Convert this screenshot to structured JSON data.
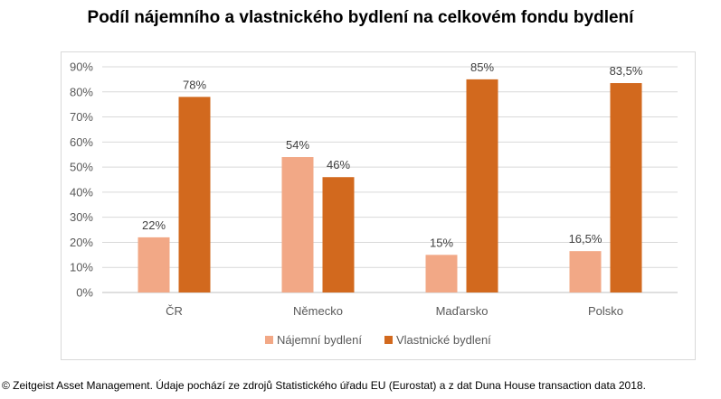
{
  "title": "Podíl nájemního a vlastnického bydlení na celkovém fondu bydlení",
  "credit": "© Zeitgeist Asset Management. Údaje pochází ze zdrojů Statistického úřadu EU (Eurostat) a z dat Duna House transaction data 2018.",
  "colors": {
    "series1": "#f2a886",
    "series2": "#d2691e",
    "grid": "#d9d9d9",
    "axis": "#bfbfbf",
    "text": "#595959"
  },
  "chart_data": {
    "type": "bar",
    "title": "Podíl nájemního a vlastnického bydlení na celkovém fondu bydlení",
    "categories": [
      "ČR",
      "Německo",
      "Maďarsko",
      "Polsko"
    ],
    "series": [
      {
        "name": "Nájemní bydlení",
        "values": [
          22,
          54,
          15,
          16.5
        ],
        "labels": [
          "22%",
          "54%",
          "15%",
          "16,5%"
        ]
      },
      {
        "name": "Vlastnické bydlení",
        "values": [
          78,
          46,
          85,
          83.5
        ],
        "labels": [
          "78%",
          "46%",
          "85%",
          "83,5%"
        ]
      }
    ],
    "ylim": [
      0,
      90
    ],
    "yticks": [
      "0%",
      "10%",
      "20%",
      "30%",
      "40%",
      "50%",
      "60%",
      "70%",
      "80%",
      "90%"
    ],
    "grid": true,
    "legend": "bottom"
  }
}
